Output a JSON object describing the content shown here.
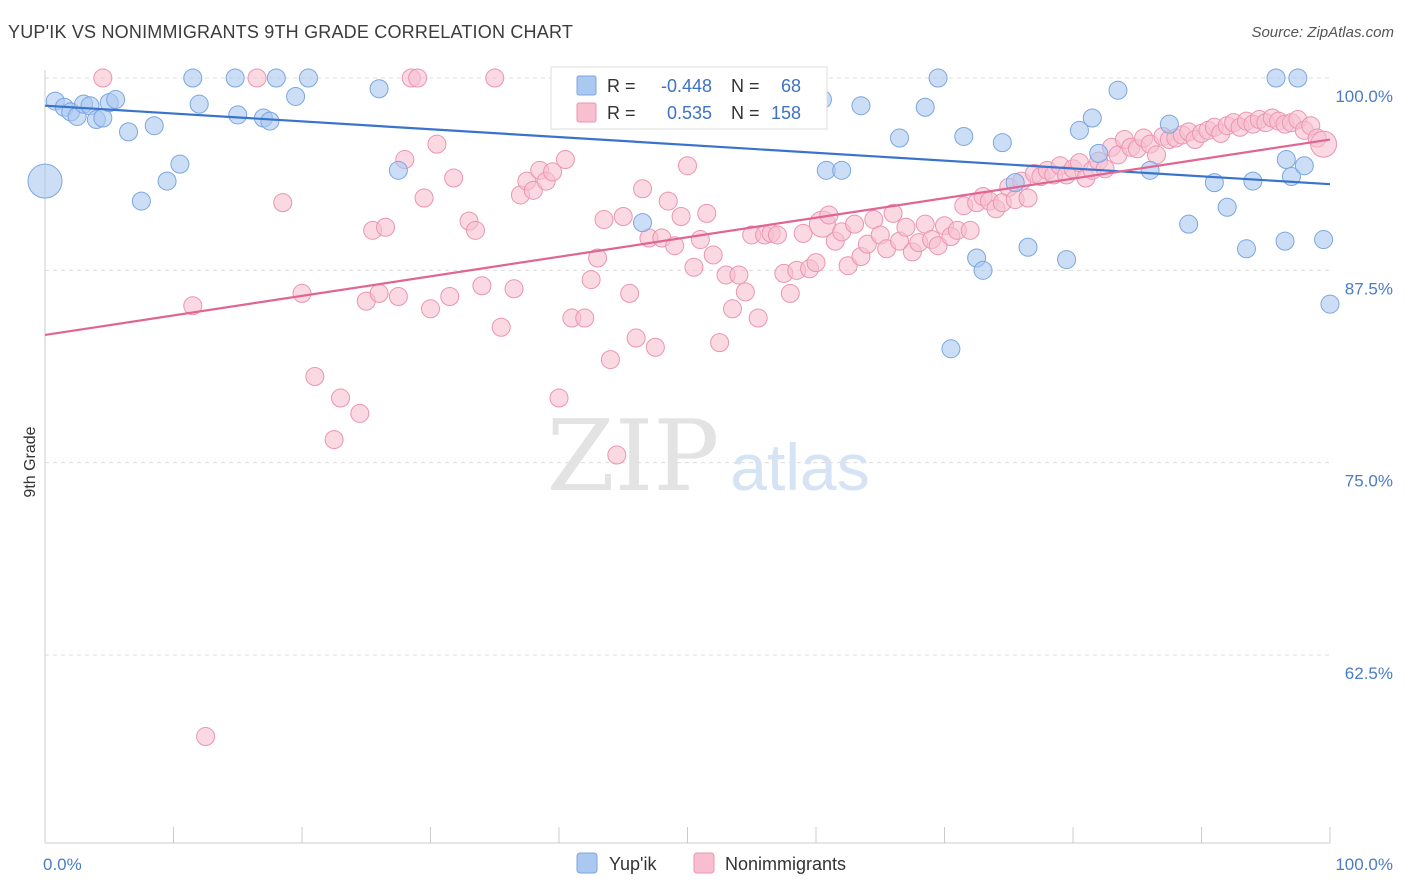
{
  "header": {
    "title": "YUP'IK VS NONIMMIGRANTS 9TH GRADE CORRELATION CHART",
    "source": "Source: ZipAtlas.com"
  },
  "watermark": {
    "zip": "ZIP",
    "atlas": "atlas"
  },
  "colors": {
    "yupik_fill": "#aac8f0",
    "yupik_stroke": "#7aa6e0",
    "yupik_line": "#3a73cc",
    "nonimm_fill": "#f7bfd0",
    "nonimm_stroke": "#eb94b2",
    "nonimm_line": "#e06593",
    "value_text": "#3d72c4"
  },
  "chart_data": {
    "type": "scatter",
    "title": "YUP'IK VS NONIMMIGRANTS 9TH GRADE CORRELATION CHART",
    "xlabel": "",
    "ylabel": "9th Grade",
    "xlim": [
      0,
      100
    ],
    "ylim": [
      50,
      102
    ],
    "x_tick_labels": [
      "0.0%",
      "100.0%"
    ],
    "y_ticks": [
      62.5,
      75.0,
      87.5,
      100.0
    ],
    "y_tick_labels": [
      "62.5%",
      "75.0%",
      "87.5%",
      "100.0%"
    ],
    "grid": "horizontal dashed",
    "legend_top": [
      {
        "r_label": "R =",
        "r_value": "-0.448",
        "n_label": "N =",
        "n_value": "68"
      },
      {
        "r_label": "R =",
        "r_value": "0.535",
        "n_label": "N =",
        "n_value": "158"
      }
    ],
    "legend_bottom": [
      "Yup'ik",
      "Nonimmigrants"
    ],
    "series": [
      {
        "name": "Yup'ik",
        "trend": [
          [
            0,
            98.2
          ],
          [
            100,
            93.1
          ]
        ],
        "points": [
          [
            0,
            93.3,
            3
          ],
          [
            0.8,
            98.5,
            1
          ],
          [
            1.5,
            98.1,
            1
          ],
          [
            2.0,
            97.8,
            1
          ],
          [
            2.5,
            97.5,
            1
          ],
          [
            3.0,
            98.3,
            1
          ],
          [
            3.5,
            98.2,
            1
          ],
          [
            4.0,
            97.3,
            1
          ],
          [
            4.5,
            97.4,
            1
          ],
          [
            5.0,
            98.4,
            1
          ],
          [
            5.5,
            98.6,
            1
          ],
          [
            6.5,
            96.5,
            1
          ],
          [
            7.5,
            92.0,
            1
          ],
          [
            8.5,
            96.9,
            1
          ],
          [
            9.5,
            93.3,
            1
          ],
          [
            10.5,
            94.4,
            1
          ],
          [
            11.5,
            100.0,
            1
          ],
          [
            12.0,
            98.3,
            1
          ],
          [
            14.8,
            100.0,
            1
          ],
          [
            15.0,
            97.6,
            1
          ],
          [
            17.0,
            97.4,
            1
          ],
          [
            17.5,
            97.2,
            1
          ],
          [
            18.0,
            100.0,
            1
          ],
          [
            19.5,
            98.8,
            1
          ],
          [
            20.5,
            100.0,
            1
          ],
          [
            26.0,
            99.3,
            1
          ],
          [
            27.5,
            94.0,
            1
          ],
          [
            46.5,
            90.6,
            1
          ],
          [
            60.0,
            100.0,
            1
          ],
          [
            60.5,
            98.6,
            1
          ],
          [
            60.8,
            94.0,
            1
          ],
          [
            62.0,
            94.0,
            1
          ],
          [
            63.5,
            98.2,
            1
          ],
          [
            66.5,
            96.1,
            1
          ],
          [
            68.5,
            98.1,
            1
          ],
          [
            69.5,
            100.0,
            1
          ],
          [
            70.5,
            82.4,
            1
          ],
          [
            71.5,
            96.2,
            1
          ],
          [
            72.5,
            88.3,
            1
          ],
          [
            73.0,
            87.5,
            1
          ],
          [
            74.5,
            95.8,
            1
          ],
          [
            75.5,
            93.2,
            1
          ],
          [
            76.5,
            89.0,
            1
          ],
          [
            79.5,
            88.2,
            1
          ],
          [
            80.5,
            96.6,
            1
          ],
          [
            81.5,
            97.4,
            1
          ],
          [
            82.0,
            95.1,
            1
          ],
          [
            83.5,
            99.2,
            1
          ],
          [
            86.0,
            94.0,
            1
          ],
          [
            87.5,
            97.0,
            1
          ],
          [
            89.0,
            90.5,
            1
          ],
          [
            91.0,
            93.2,
            1
          ],
          [
            92.0,
            91.6,
            1
          ],
          [
            93.5,
            88.9,
            1
          ],
          [
            94.0,
            93.3,
            1
          ],
          [
            95.8,
            100.0,
            1
          ],
          [
            96.5,
            89.4,
            1
          ],
          [
            96.6,
            94.7,
            1
          ],
          [
            97.0,
            93.6,
            1
          ],
          [
            97.5,
            100.0,
            1
          ],
          [
            98.0,
            94.3,
            1
          ],
          [
            99.5,
            89.5,
            1
          ],
          [
            100.0,
            85.3,
            1
          ]
        ]
      },
      {
        "name": "Nonimmigrants",
        "trend": [
          [
            0,
            83.3
          ],
          [
            100,
            96.0
          ]
        ],
        "points": [
          [
            4.5,
            100.0,
            1
          ],
          [
            11.5,
            85.2,
            1
          ],
          [
            12.5,
            57.2,
            1
          ],
          [
            16.5,
            100.0,
            1
          ],
          [
            18.5,
            91.9,
            1
          ],
          [
            20.0,
            86.0,
            1
          ],
          [
            21.0,
            80.6,
            1
          ],
          [
            22.5,
            76.5,
            1
          ],
          [
            23.0,
            79.2,
            1
          ],
          [
            24.5,
            78.2,
            1
          ],
          [
            25.0,
            85.5,
            1
          ],
          [
            25.5,
            90.1,
            1
          ],
          [
            26.0,
            86.0,
            1
          ],
          [
            26.5,
            90.3,
            1
          ],
          [
            27.5,
            85.8,
            1
          ],
          [
            28.0,
            94.7,
            1
          ],
          [
            28.5,
            100.0,
            1
          ],
          [
            29.0,
            100.0,
            1
          ],
          [
            29.5,
            92.2,
            1
          ],
          [
            30.0,
            85.0,
            1
          ],
          [
            30.5,
            95.7,
            1
          ],
          [
            31.5,
            85.8,
            1
          ],
          [
            31.8,
            93.5,
            1
          ],
          [
            33.0,
            90.7,
            1
          ],
          [
            33.5,
            90.1,
            1
          ],
          [
            34.0,
            86.5,
            1
          ],
          [
            35.0,
            100.0,
            1
          ],
          [
            35.5,
            83.8,
            1
          ],
          [
            36.5,
            86.3,
            1
          ],
          [
            37.0,
            92.4,
            1
          ],
          [
            37.5,
            93.3,
            1
          ],
          [
            38.0,
            92.7,
            1
          ],
          [
            38.5,
            94.0,
            1
          ],
          [
            39.0,
            93.3,
            1
          ],
          [
            39.5,
            93.9,
            1
          ],
          [
            40.0,
            79.2,
            1
          ],
          [
            40.5,
            94.7,
            1
          ],
          [
            41.0,
            84.4,
            1
          ],
          [
            42.0,
            84.4,
            1
          ],
          [
            42.5,
            86.9,
            1
          ],
          [
            43.0,
            88.3,
            1
          ],
          [
            43.5,
            90.8,
            1
          ],
          [
            44.0,
            81.7,
            1
          ],
          [
            44.5,
            75.5,
            1
          ],
          [
            45.0,
            91.0,
            1
          ],
          [
            45.5,
            86.0,
            1
          ],
          [
            46.0,
            83.1,
            1
          ],
          [
            46.5,
            92.8,
            1
          ],
          [
            47.0,
            89.6,
            1
          ],
          [
            47.5,
            82.5,
            1
          ],
          [
            48.0,
            89.6,
            1
          ],
          [
            48.5,
            92.0,
            1
          ],
          [
            49.0,
            89.1,
            1
          ],
          [
            49.5,
            91.0,
            1
          ],
          [
            50.0,
            94.3,
            1
          ],
          [
            50.5,
            87.7,
            1
          ],
          [
            51.0,
            89.5,
            1
          ],
          [
            51.5,
            91.2,
            1
          ],
          [
            52.0,
            88.5,
            1
          ],
          [
            52.5,
            82.8,
            1
          ],
          [
            53.0,
            87.2,
            1
          ],
          [
            53.5,
            85.0,
            1
          ],
          [
            54.0,
            87.2,
            1
          ],
          [
            54.5,
            86.1,
            1
          ],
          [
            55.0,
            89.8,
            1
          ],
          [
            55.5,
            84.4,
            1
          ],
          [
            56.0,
            89.8,
            1
          ],
          [
            56.5,
            89.9,
            1
          ],
          [
            57.0,
            89.8,
            1
          ],
          [
            57.5,
            87.3,
            1
          ],
          [
            58.0,
            86.0,
            1
          ],
          [
            58.5,
            87.5,
            1
          ],
          [
            59.0,
            89.9,
            1
          ],
          [
            59.5,
            87.6,
            1
          ],
          [
            60.0,
            88.0,
            1
          ],
          [
            60.5,
            90.5,
            2
          ],
          [
            61.0,
            91.1,
            1
          ],
          [
            61.5,
            89.4,
            1
          ],
          [
            62.0,
            90.0,
            1
          ],
          [
            62.5,
            87.8,
            1
          ],
          [
            63.0,
            90.5,
            1
          ],
          [
            63.5,
            88.4,
            1
          ],
          [
            64.0,
            89.2,
            1
          ],
          [
            64.5,
            90.8,
            1
          ],
          [
            65.0,
            89.8,
            1
          ],
          [
            65.5,
            88.9,
            1
          ],
          [
            66.0,
            91.2,
            1
          ],
          [
            66.5,
            89.4,
            1
          ],
          [
            67.0,
            90.3,
            1
          ],
          [
            67.5,
            88.7,
            1
          ],
          [
            68.0,
            89.3,
            1
          ],
          [
            68.5,
            90.5,
            1
          ],
          [
            69.0,
            89.5,
            1
          ],
          [
            69.5,
            89.1,
            1
          ],
          [
            70.0,
            90.4,
            1
          ],
          [
            70.5,
            89.7,
            1
          ],
          [
            71.0,
            90.1,
            1
          ],
          [
            71.5,
            91.7,
            1
          ],
          [
            72.0,
            90.1,
            1
          ],
          [
            72.5,
            91.9,
            1
          ],
          [
            73.0,
            92.3,
            1
          ],
          [
            73.5,
            92.0,
            1
          ],
          [
            74.0,
            91.5,
            1
          ],
          [
            74.5,
            91.9,
            1
          ],
          [
            75.0,
            92.9,
            1
          ],
          [
            75.5,
            92.1,
            1
          ],
          [
            76.0,
            93.3,
            1
          ],
          [
            76.5,
            92.2,
            1
          ],
          [
            77.0,
            93.8,
            1
          ],
          [
            77.5,
            93.6,
            1
          ],
          [
            78.0,
            94.0,
            1
          ],
          [
            78.5,
            93.7,
            1
          ],
          [
            79.0,
            94.3,
            1
          ],
          [
            79.5,
            93.7,
            1
          ],
          [
            80.0,
            94.1,
            1
          ],
          [
            80.5,
            94.5,
            1
          ],
          [
            81.0,
            93.5,
            1
          ],
          [
            81.5,
            94.0,
            1
          ],
          [
            82.0,
            94.6,
            1
          ],
          [
            82.5,
            94.1,
            1
          ],
          [
            83.0,
            95.5,
            1
          ],
          [
            83.5,
            95.0,
            1
          ],
          [
            84.0,
            96.0,
            1
          ],
          [
            84.5,
            95.5,
            1
          ],
          [
            85.0,
            95.4,
            1
          ],
          [
            85.5,
            96.1,
            1
          ],
          [
            86.0,
            95.7,
            1
          ],
          [
            86.5,
            95.0,
            1
          ],
          [
            87.0,
            96.2,
            1
          ],
          [
            87.5,
            96.0,
            1
          ],
          [
            88.0,
            96.1,
            1
          ],
          [
            88.5,
            96.3,
            1
          ],
          [
            89.0,
            96.5,
            1
          ],
          [
            89.5,
            96.0,
            1
          ],
          [
            90.0,
            96.4,
            1
          ],
          [
            90.5,
            96.6,
            1
          ],
          [
            91.0,
            96.8,
            1
          ],
          [
            91.5,
            96.4,
            1
          ],
          [
            92.0,
            96.9,
            1
          ],
          [
            92.5,
            97.1,
            1
          ],
          [
            93.0,
            96.8,
            1
          ],
          [
            93.5,
            97.2,
            1
          ],
          [
            94.0,
            97.0,
            1
          ],
          [
            94.5,
            97.3,
            1
          ],
          [
            95.0,
            97.1,
            1
          ],
          [
            95.5,
            97.4,
            1
          ],
          [
            96.0,
            97.2,
            1
          ],
          [
            96.5,
            97.0,
            1
          ],
          [
            97.0,
            97.1,
            1
          ],
          [
            97.5,
            97.3,
            1
          ],
          [
            98.0,
            96.6,
            1
          ],
          [
            98.5,
            96.9,
            1
          ],
          [
            99.0,
            96.1,
            1
          ],
          [
            99.5,
            95.7,
            2
          ]
        ]
      }
    ]
  }
}
